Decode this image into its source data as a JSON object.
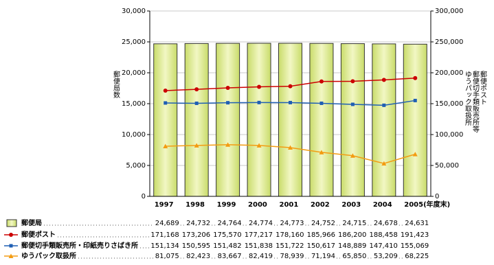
{
  "chart_data": {
    "type": "bar_line",
    "ylabel": "郵便局数",
    "y2label": [
      "郵便ポスト",
      "郵便切手類販売所等",
      "ゆうパック取扱所"
    ],
    "categories": [
      "1997",
      "1998",
      "1999",
      "2000",
      "2001",
      "2002",
      "2003",
      "2004",
      "2005(年度末)"
    ],
    "ylim": [
      0,
      30000
    ],
    "yticks": [
      {
        "value": 0,
        "label": "0"
      },
      {
        "value": 5000,
        "label": "5,000"
      },
      {
        "value": 10000,
        "label": "10,000"
      },
      {
        "value": 15000,
        "label": "15,000"
      },
      {
        "value": 20000,
        "label": "20,000"
      },
      {
        "value": 25000,
        "label": "25,000"
      },
      {
        "value": 30000,
        "label": "30,000"
      }
    ],
    "y2lim": [
      0,
      300000
    ],
    "y2ticks": [
      {
        "value": 0,
        "label": "0"
      },
      {
        "value": 50000,
        "label": "50,000"
      },
      {
        "value": 100000,
        "label": "100,000"
      },
      {
        "value": 150000,
        "label": "150,000"
      },
      {
        "value": 200000,
        "label": "200,000"
      },
      {
        "value": 250000,
        "label": "250,000"
      },
      {
        "value": 300000,
        "label": "300,000"
      }
    ],
    "grid": true,
    "series": [
      {
        "name": "郵便局",
        "type": "bar",
        "color": "#dde98c",
        "values": [
          24689,
          24732,
          24764,
          24774,
          24773,
          24752,
          24715,
          24678,
          24631
        ],
        "value_labels": [
          "24,689",
          "24,732",
          "24,764",
          "24,774",
          "24,773",
          "24,752",
          "24,715",
          "24,678",
          "24,631"
        ]
      },
      {
        "name": "郵便ポスト",
        "type": "line",
        "marker": "circle",
        "axis": "y2",
        "color": "#cc0000",
        "values": [
          171168,
          173206,
          175570,
          177217,
          178160,
          185966,
          186200,
          188458,
          191423
        ],
        "value_labels": [
          "171,168",
          "173,206",
          "175,570",
          "177,217",
          "178,160",
          "185,966",
          "186,200",
          "188,458",
          "191,423"
        ]
      },
      {
        "name": "郵便切手類販売所・印紙売りさばき所",
        "type": "line",
        "marker": "square",
        "axis": "y2",
        "color": "#1f5fb4",
        "values": [
          151134,
          150595,
          151482,
          151838,
          151722,
          150617,
          148889,
          147410,
          155069
        ],
        "value_labels": [
          "151,134",
          "150,595",
          "151,482",
          "151,838",
          "151,722",
          "150,617",
          "148,889",
          "147,410",
          "155,069"
        ]
      },
      {
        "name": "ゆうパック取扱所",
        "type": "line",
        "marker": "triangle",
        "axis": "y2",
        "color": "#f39c12",
        "values": [
          81075,
          82423,
          83667,
          82419,
          78939,
          71194,
          65850,
          53209,
          68225
        ],
        "value_labels": [
          "81,075",
          "82,423",
          "83,667",
          "82,419",
          "78,939",
          "71,194",
          "65,850",
          "53,209",
          "68,225"
        ]
      }
    ]
  }
}
